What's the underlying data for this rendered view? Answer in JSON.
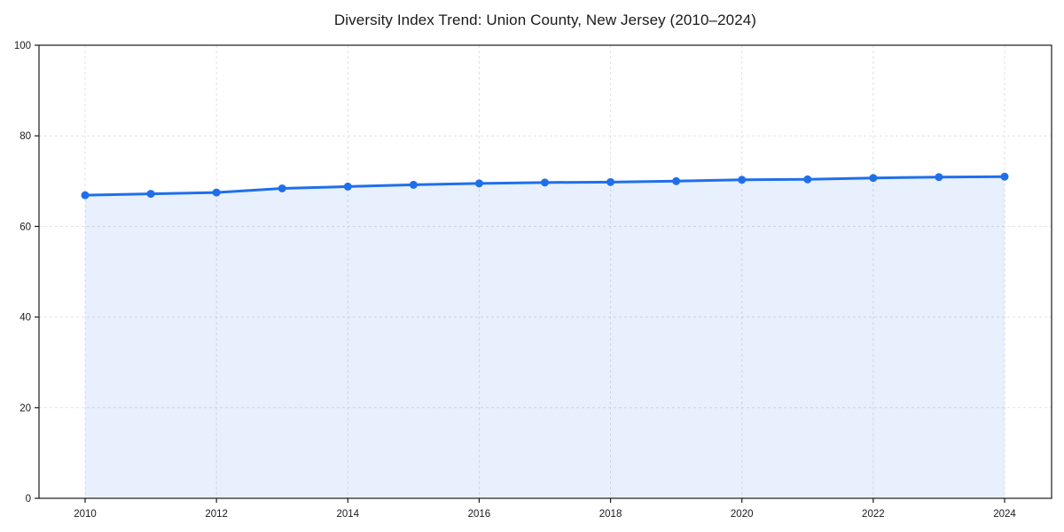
{
  "title": "Diversity Index Trend: Union County, New Jersey (2010–2024)",
  "chart_data": {
    "type": "line",
    "title": "Diversity Index Trend: Union County, New Jersey (2010–2024)",
    "x": [
      2010,
      2011,
      2012,
      2013,
      2014,
      2015,
      2016,
      2017,
      2018,
      2019,
      2020,
      2021,
      2022,
      2023,
      2024
    ],
    "series": [
      {
        "name": "Diversity Index",
        "values": [
          66.9,
          67.2,
          67.5,
          68.4,
          68.8,
          69.2,
          69.5,
          69.7,
          69.8,
          70.0,
          70.3,
          70.4,
          70.7,
          70.9,
          71.0
        ]
      }
    ],
    "xlabel": "",
    "ylabel": "",
    "ylim": [
      0,
      100
    ],
    "xticks": [
      2010,
      2012,
      2014,
      2016,
      2018,
      2020,
      2022,
      2024
    ],
    "yticks": [
      0,
      20,
      40,
      60,
      80,
      100
    ],
    "grid": true,
    "grid_style": "dashed",
    "legend": false,
    "marker": "circle",
    "area_fill": true,
    "colors": {
      "line": "#1f6feb",
      "fill_opacity": "0.10",
      "grid": "#e0e0e0",
      "axis": "#1a1a1a",
      "text": "#1a1a1a",
      "background": "#ffffff"
    }
  }
}
